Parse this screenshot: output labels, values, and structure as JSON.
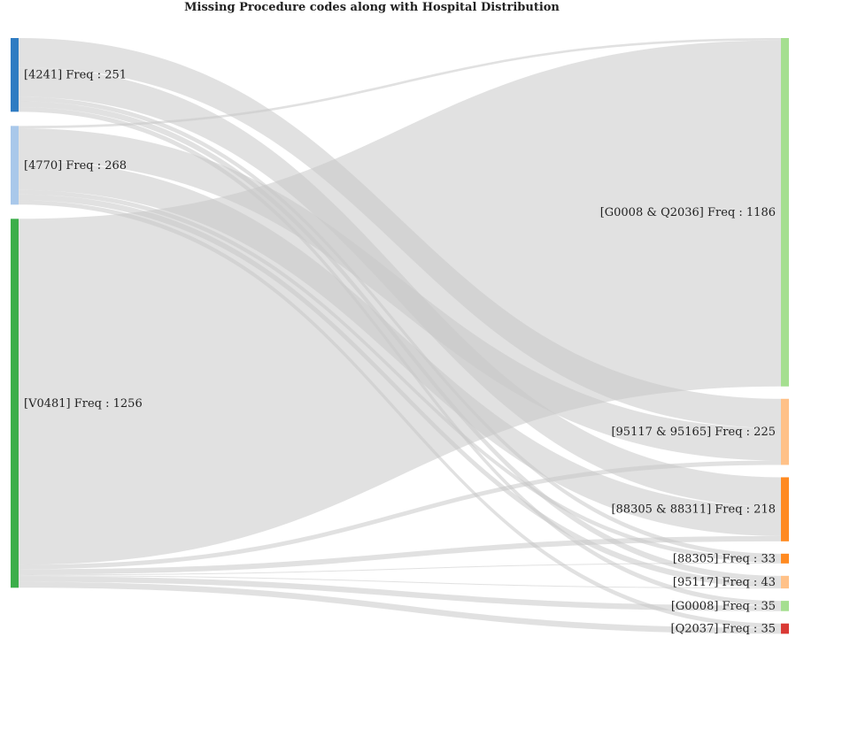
{
  "title": "Missing Procedure codes along with Hospital Distribution",
  "colors": {
    "link": "#c8c8c8",
    "background": "#ffffff"
  },
  "chart_data": {
    "type": "sankey",
    "title": "Missing Procedure codes along with Hospital Distribution",
    "sources": [
      {
        "id": "4241",
        "label": "[4241] Freq : 251",
        "value": 251,
        "color": "#2f7cc2"
      },
      {
        "id": "4770",
        "label": "[4770] Freq : 268",
        "value": 268,
        "color": "#a9c8ea"
      },
      {
        "id": "V0481",
        "label": "[V0481] Freq : 1256",
        "value": 1256,
        "color": "#3cae4a"
      }
    ],
    "targets": [
      {
        "id": "G0008_Q2036",
        "label": "[G0008 & Q2036] Freq : 1186",
        "value": 1186,
        "color": "#a5df90"
      },
      {
        "id": "95117_95165",
        "label": "[95117 & 95165] Freq : 225",
        "value": 225,
        "color": "#ffc188"
      },
      {
        "id": "88305_88311",
        "label": "[88305 & 88311] Freq : 218",
        "value": 218,
        "color": "#ff8a21"
      },
      {
        "id": "88305",
        "label": "[88305] Freq : 33",
        "value": 33,
        "color": "#ff8a21"
      },
      {
        "id": "95117",
        "label": "[95117] Freq : 43",
        "value": 43,
        "color": "#ffc188"
      },
      {
        "id": "G0008",
        "label": "[G0008] Freq : 35",
        "value": 35,
        "color": "#a5df90"
      },
      {
        "id": "Q2037",
        "label": "[Q2037] Freq : 35",
        "value": 35,
        "color": "#d93a35"
      }
    ],
    "links": [
      {
        "source": "4241",
        "target": "95117_95165",
        "value": 100
      },
      {
        "source": "4241",
        "target": "88305_88311",
        "value": 100
      },
      {
        "source": "4241",
        "target": "88305",
        "value": 15
      },
      {
        "source": "4241",
        "target": "95117",
        "value": 20
      },
      {
        "source": "4241",
        "target": "G0008",
        "value": 16
      },
      {
        "source": "4770",
        "target": "G0008_Q2036",
        "value": 8
      },
      {
        "source": "4770",
        "target": "95117_95165",
        "value": 110
      },
      {
        "source": "4770",
        "target": "88305_88311",
        "value": 100
      },
      {
        "source": "4770",
        "target": "88305",
        "value": 15
      },
      {
        "source": "4770",
        "target": "95117",
        "value": 20
      },
      {
        "source": "4770",
        "target": "Q2037",
        "value": 15
      },
      {
        "source": "V0481",
        "target": "G0008_Q2036",
        "value": 1178
      },
      {
        "source": "V0481",
        "target": "95117_95165",
        "value": 15
      },
      {
        "source": "V0481",
        "target": "88305_88311",
        "value": 18
      },
      {
        "source": "V0481",
        "target": "88305",
        "value": 3
      },
      {
        "source": "V0481",
        "target": "95117",
        "value": 3
      },
      {
        "source": "V0481",
        "target": "G0008",
        "value": 19
      },
      {
        "source": "V0481",
        "target": "Q2037",
        "value": 20
      }
    ]
  }
}
